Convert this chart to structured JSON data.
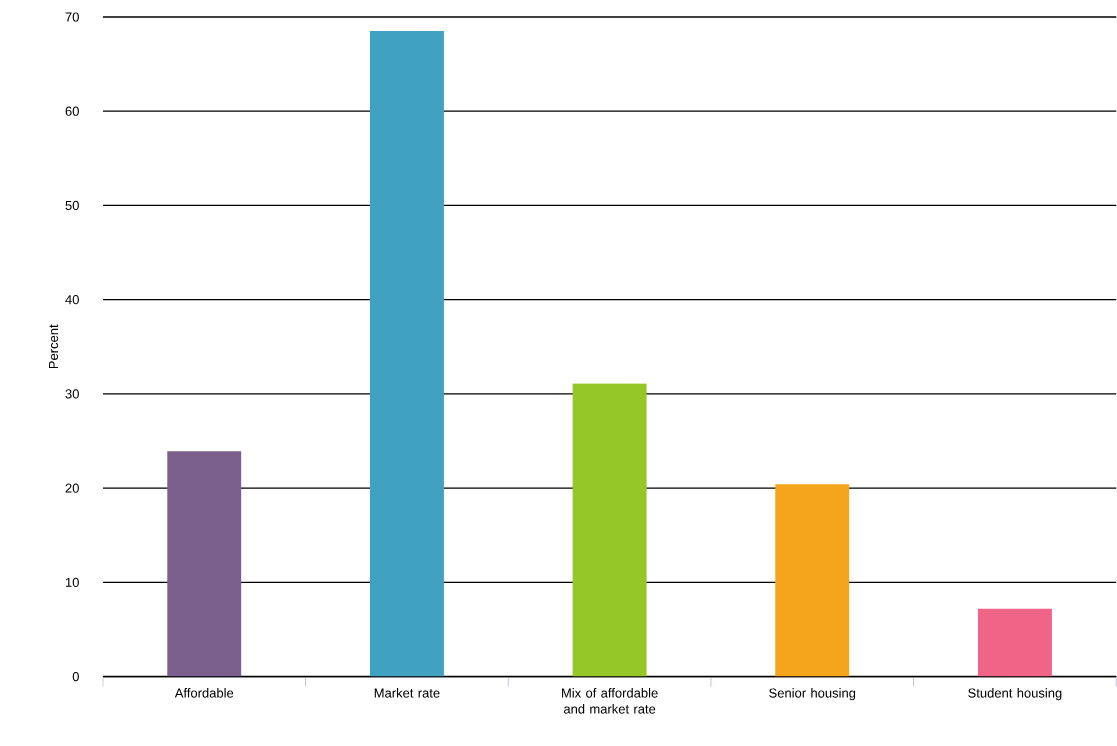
{
  "chart_data": {
    "type": "bar",
    "ylabel": "Percent",
    "categories": [
      "Affordable",
      "Market rate",
      "Mix of affordable and market rate",
      "Senior housing",
      "Student housing"
    ],
    "values": [
      23.9,
      68.5,
      31.1,
      20.4,
      7.2
    ],
    "colors": [
      "#7b5f8d",
      "#40a1c1",
      "#95c728",
      "#f4a51c",
      "#ef6487"
    ],
    "ylim": [
      0,
      70
    ],
    "yticks": [
      0,
      10,
      20,
      30,
      40,
      50,
      60,
      70
    ],
    "grid": "y"
  }
}
